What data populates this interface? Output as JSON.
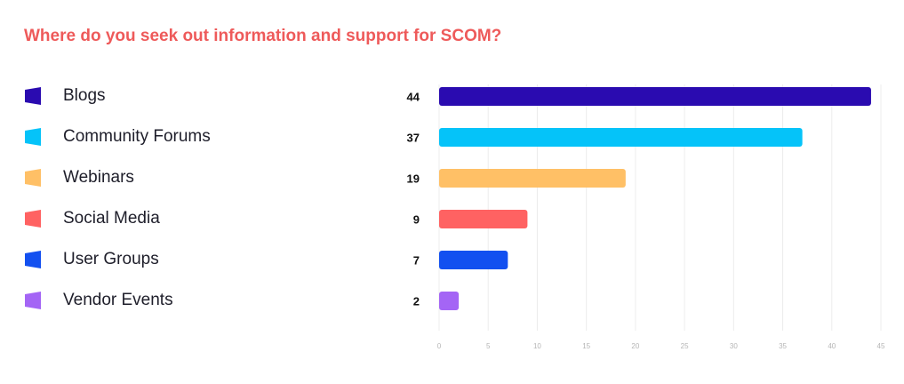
{
  "title": "Where do you seek out information and support for SCOM?",
  "colors": {
    "title": "#ee5a5a",
    "grid": "#ececec",
    "tick_label": "#b5b5b5",
    "value_label": "#111111"
  },
  "chart_data": {
    "type": "bar",
    "orientation": "horizontal",
    "categories": [
      "Blogs",
      "Community Forums",
      "Webinars",
      "Social Media",
      "User Groups",
      "Vendor Events"
    ],
    "values": [
      44,
      37,
      19,
      9,
      7,
      2
    ],
    "colors": [
      "#2a0bb0",
      "#05c3f9",
      "#ffc066",
      "#ff6262",
      "#1350f0",
      "#a465f5"
    ],
    "xlim": [
      0,
      45
    ],
    "xticks": [
      "0",
      "5",
      "10",
      "15",
      "20",
      "25",
      "30",
      "35",
      "40",
      "45"
    ],
    "grid": true,
    "legend": "left"
  }
}
